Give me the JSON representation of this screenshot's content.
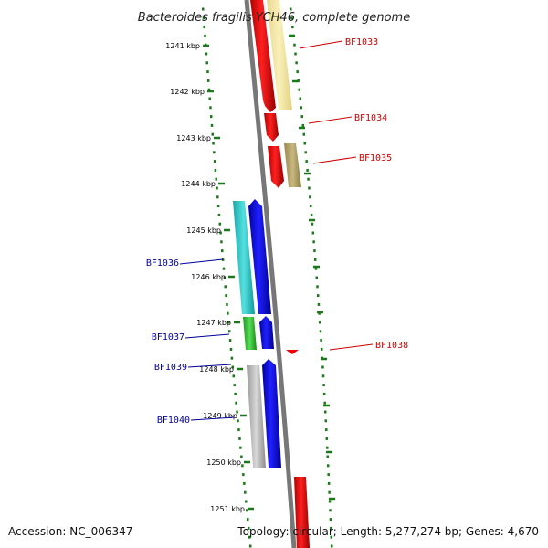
{
  "title": "Bacteroides fragilis YCH46, complete genome",
  "accession": "Accession: NC_006347",
  "topology": "Topology: circular; Length: 5,277,274 bp; Genes: 4,670",
  "ticks": [
    {
      "label": "1241 kbp"
    },
    {
      "label": "1242 kbp"
    },
    {
      "label": "1243 kbp"
    },
    {
      "label": "1244 kbp"
    },
    {
      "label": "1245 kbp"
    },
    {
      "label": "1246 kbp"
    },
    {
      "label": "1247 kbp"
    },
    {
      "label": "1248 kbp"
    },
    {
      "label": "1249 kbp"
    },
    {
      "label": "1250 kbp"
    },
    {
      "label": "1251 kbp"
    }
  ],
  "gene_labels": [
    {
      "name": "BF1033",
      "color": "#cc0000"
    },
    {
      "name": "BF1034",
      "color": "#cc0000"
    },
    {
      "name": "BF1035",
      "color": "#cc0000"
    },
    {
      "name": "BF1036",
      "color": "#000099"
    },
    {
      "name": "BF1037",
      "color": "#000099"
    },
    {
      "name": "BF1038",
      "color": "#cc0000"
    },
    {
      "name": "BF1039",
      "color": "#000099"
    },
    {
      "name": "BF1040",
      "color": "#000099"
    }
  ],
  "colors": {
    "forward": "#ff0000",
    "reverse": "#0000ff",
    "cog_yellow": "#f5e6a0",
    "cog_olive": "#b8a86a",
    "cog_cyan": "#33cccc",
    "cog_green": "#44cc44",
    "cog_gray": "#bbbbbb",
    "backbone": "#777777",
    "ruler": "#1a7a1a"
  }
}
